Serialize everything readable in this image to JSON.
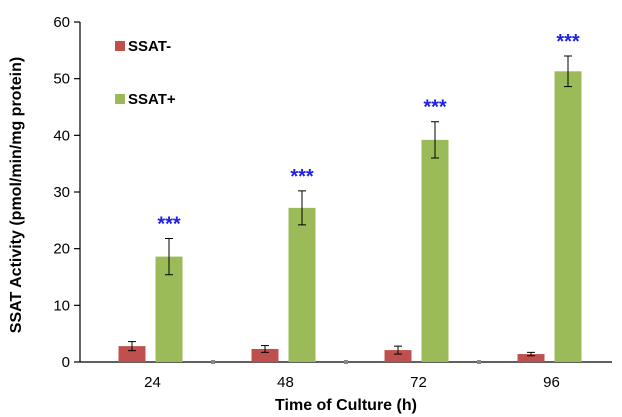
{
  "chart_data": {
    "type": "bar",
    "title": "",
    "xlabel": "Time of Culture (h)",
    "ylabel": "SSAT Activity (pmol/min/mg protein)",
    "categories": [
      "24",
      "48",
      "72",
      "96"
    ],
    "ylim": [
      0,
      60
    ],
    "yticks": [
      0,
      10,
      20,
      30,
      40,
      50,
      60
    ],
    "grid": false,
    "legend_position": "top-left",
    "series": [
      {
        "name": "SSAT-",
        "color": "#c0504d",
        "values": [
          2.8,
          2.3,
          2.1,
          1.4
        ],
        "errors": [
          0.8,
          0.6,
          0.7,
          0.3
        ]
      },
      {
        "name": "SSAT+",
        "color": "#9bbb59",
        "values": [
          18.6,
          27.2,
          39.2,
          51.3
        ],
        "errors": [
          3.2,
          3.0,
          3.2,
          2.7
        ]
      }
    ],
    "significance": {
      "series": "SSAT+",
      "labels": [
        "***",
        "***",
        "***",
        "***"
      ],
      "color": "#1f1fe6"
    }
  }
}
